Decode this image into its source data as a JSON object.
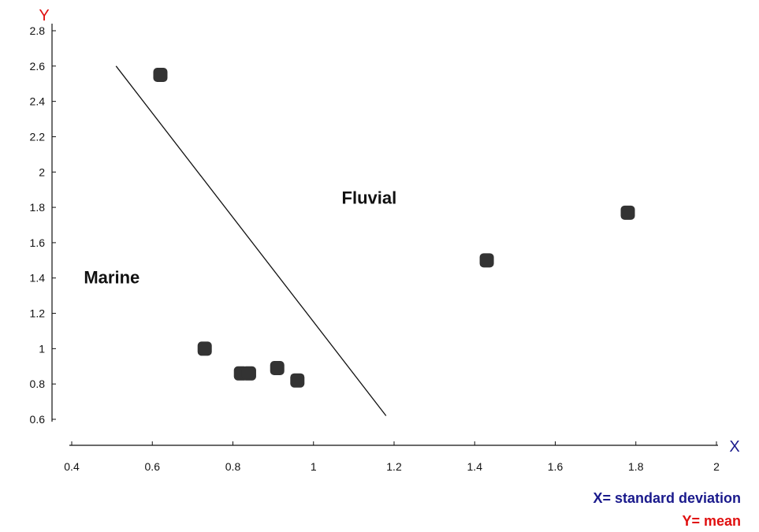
{
  "chart_data": {
    "type": "scatter",
    "axis_letters": {
      "x": "X",
      "y": "Y"
    },
    "axis_letter_colors": {
      "x": "#1a1a8c",
      "y": "#e01010"
    },
    "xlim": [
      0.4,
      2
    ],
    "ylim": [
      0.6,
      2.8
    ],
    "x_ticks": [
      {
        "value": 0.4,
        "label": "0.4"
      },
      {
        "value": 0.6,
        "label": "0.6"
      },
      {
        "value": 0.8,
        "label": "0.8"
      },
      {
        "value": 1,
        "label": "1"
      },
      {
        "value": 1.2,
        "label": "1.2"
      },
      {
        "value": 1.4,
        "label": "1.4"
      },
      {
        "value": 1.6,
        "label": "1.6"
      },
      {
        "value": 1.8,
        "label": "1.8"
      },
      {
        "value": 2,
        "label": "2"
      }
    ],
    "y_ticks": [
      {
        "value": 0.6,
        "label": "0.6"
      },
      {
        "value": 0.8,
        "label": "0.8"
      },
      {
        "value": 1,
        "label": "1"
      },
      {
        "value": 1.2,
        "label": "1.2"
      },
      {
        "value": 1.4,
        "label": "1.4"
      },
      {
        "value": 1.6,
        "label": "1.6"
      },
      {
        "value": 1.8,
        "label": "1.8"
      },
      {
        "value": 2,
        "label": "2"
      },
      {
        "value": 2.2,
        "label": "2.2"
      },
      {
        "value": 2.4,
        "label": "2.4"
      },
      {
        "value": 2.6,
        "label": "2.6"
      },
      {
        "value": 2.8,
        "label": "2.8"
      }
    ],
    "points": [
      {
        "x": 0.62,
        "y": 2.55
      },
      {
        "x": 0.73,
        "y": 1.0
      },
      {
        "x": 0.82,
        "y": 0.86
      },
      {
        "x": 0.84,
        "y": 0.86
      },
      {
        "x": 0.91,
        "y": 0.89
      },
      {
        "x": 0.96,
        "y": 0.82
      },
      {
        "x": 1.43,
        "y": 1.5
      },
      {
        "x": 1.78,
        "y": 1.77
      }
    ],
    "point_color": "#333333",
    "divider_line": {
      "x1": 0.51,
      "y1": 2.6,
      "x2": 1.18,
      "y2": 0.62
    },
    "region_labels": [
      {
        "text": "Fluvial",
        "x": 1.07,
        "y": 1.82
      },
      {
        "text": "Marine",
        "x": 0.43,
        "y": 1.37
      }
    ],
    "legend": [
      {
        "text": "X= standard deviation",
        "color": "#1a1a8c"
      },
      {
        "text": "Y= mean",
        "color": "#e01010"
      }
    ],
    "grid": false
  }
}
